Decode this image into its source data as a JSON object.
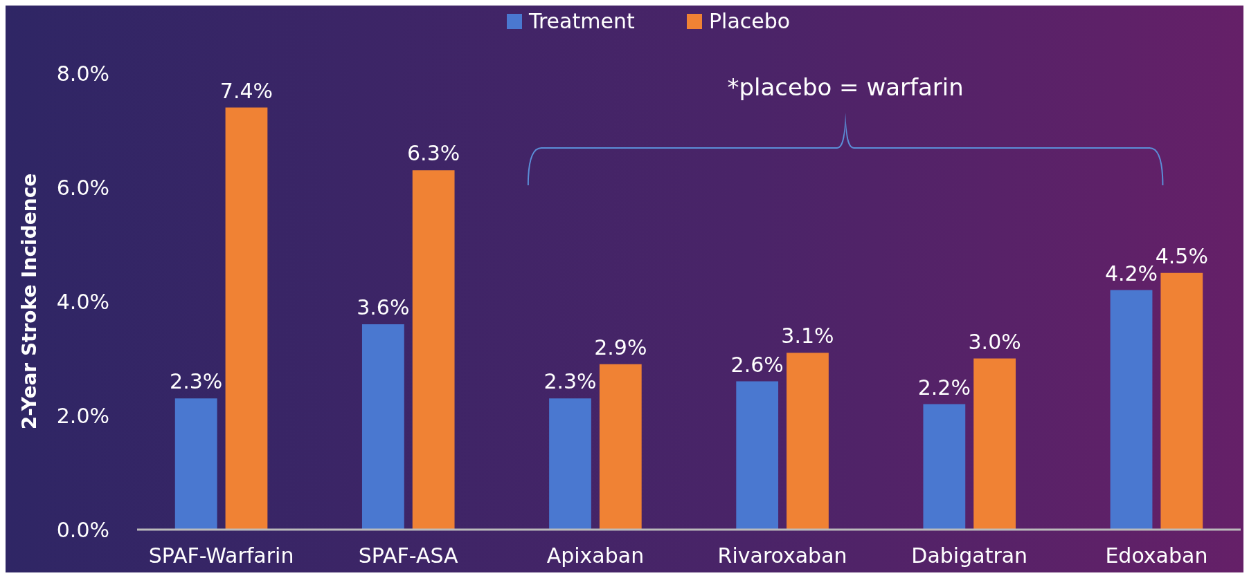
{
  "chart_data": {
    "type": "bar",
    "ylabel": "2-Year Stroke Incidence",
    "categories": [
      "SPAF-Warfarin",
      "SPAF-ASA",
      "Apixaban",
      "Rivaroxaban",
      "Dabigatran",
      "Edoxaban"
    ],
    "series": [
      {
        "name": "Treatment",
        "color": "#4a78d0",
        "values": [
          2.3,
          3.6,
          2.3,
          2.6,
          2.2,
          4.2
        ],
        "value_labels": [
          "2.3%",
          "3.6%",
          "2.3%",
          "2.6%",
          "2.2%",
          "4.2%"
        ]
      },
      {
        "name": "Placebo",
        "color": "#f08234",
        "values": [
          7.4,
          6.3,
          2.9,
          3.1,
          3.0,
          4.5
        ],
        "value_labels": [
          "7.4%",
          "6.3%",
          "2.9%",
          "3.1%",
          "3.0%",
          "4.5%"
        ]
      }
    ],
    "ylim": [
      0,
      8
    ],
    "yticks": [
      {
        "value": 0,
        "label": "0.0%"
      },
      {
        "value": 2,
        "label": "2.0%"
      },
      {
        "value": 4,
        "label": "4.0%"
      },
      {
        "value": 6,
        "label": "6.0%"
      },
      {
        "value": 8,
        "label": "8.0%"
      }
    ],
    "grid": false,
    "legend": "top",
    "annotations": [
      "*placebo = warfarin"
    ]
  }
}
